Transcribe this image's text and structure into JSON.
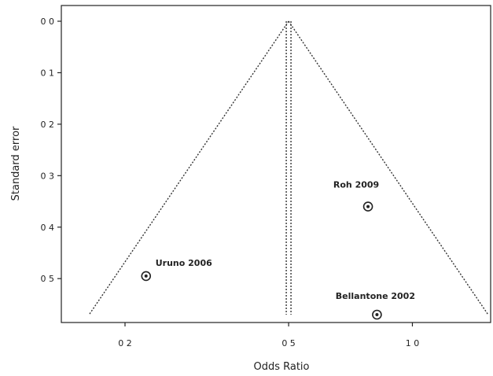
{
  "chart_data": {
    "type": "scatter",
    "xlabel": "Odds Ratio",
    "ylabel": "Standard error",
    "x_scale": "log",
    "xlim": [
      0.14,
      1.55
    ],
    "ylim": [
      0.0,
      0.57
    ],
    "y_inverted": true,
    "x_ticks": [
      0.2,
      0.5,
      1.0
    ],
    "x_tick_labels": [
      "0 2",
      "0 5",
      "1 0"
    ],
    "y_ticks": [
      0.0,
      0.1,
      0.2,
      0.3,
      0.4,
      0.5
    ],
    "y_tick_labels": [
      "0 0",
      "0 1",
      "0 2",
      "0 3",
      "0 4",
      "0 5"
    ],
    "pooled_estimate": 0.5,
    "funnel_se_max": 0.57,
    "grid": false,
    "points": [
      {
        "label": "Uruno 2006",
        "x": 0.225,
        "y": 0.495
      },
      {
        "label": "Roh 2009",
        "x": 0.78,
        "y": 0.36
      },
      {
        "label": "Bellantone 2002",
        "x": 0.82,
        "y": 0.57
      }
    ]
  }
}
